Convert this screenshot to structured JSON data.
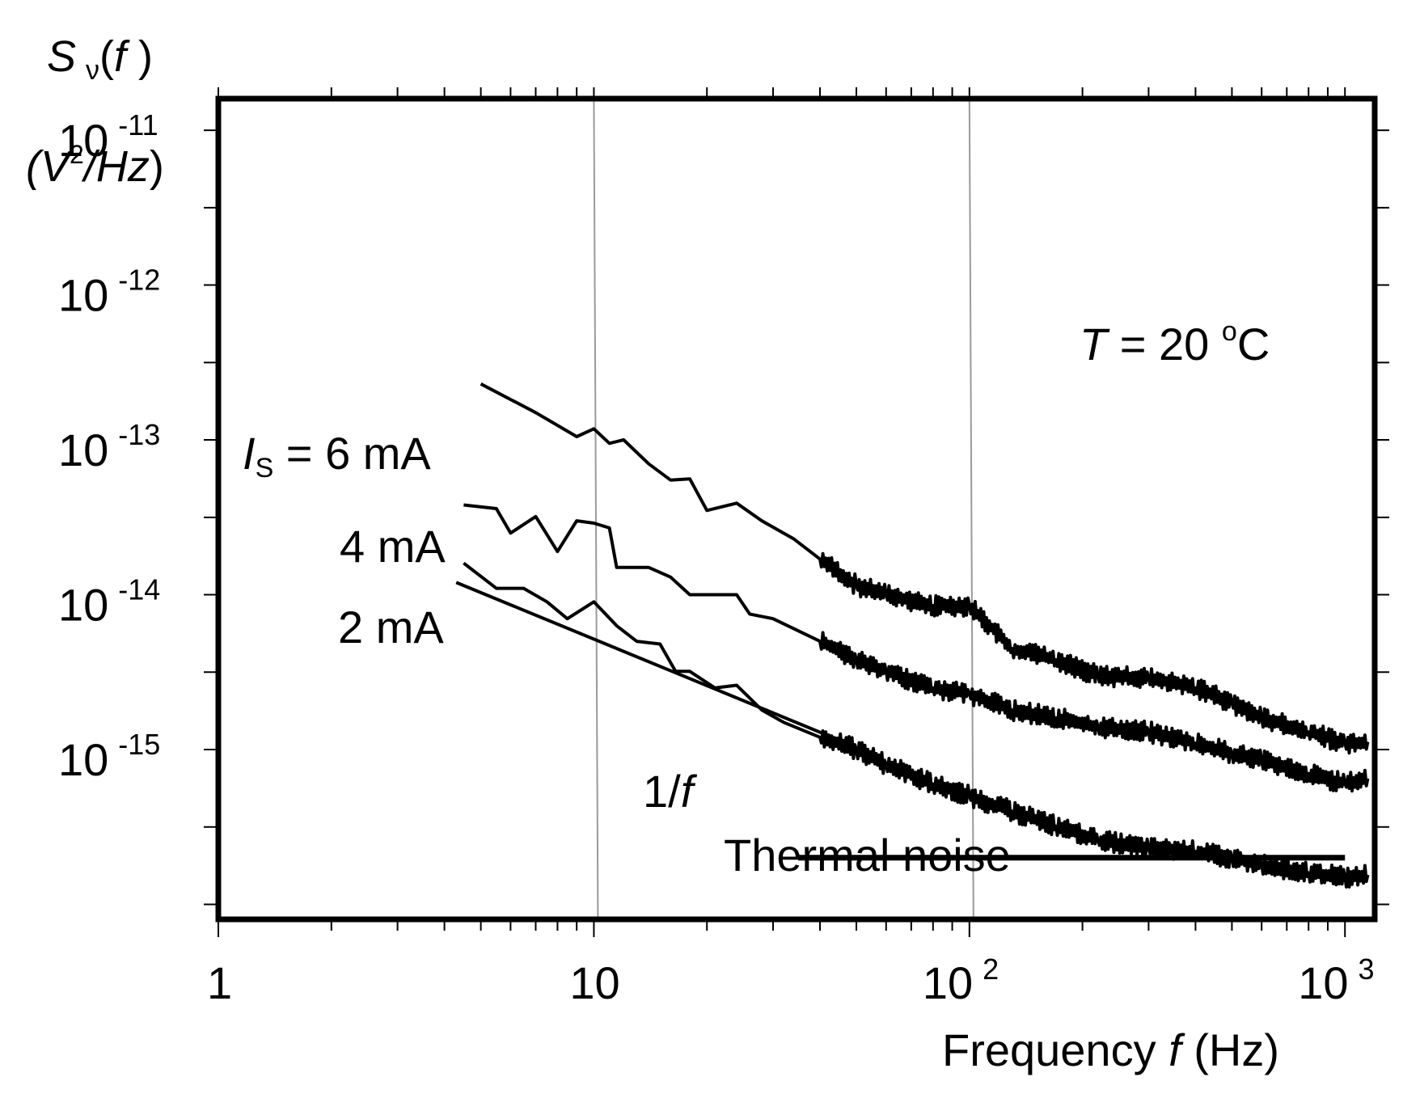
{
  "chart_data": {
    "type": "line",
    "x_scale": "log",
    "y_scale": "log",
    "xlim": [
      1,
      1200
    ],
    "ylim": [
      8e-17,
      1.6e-11
    ],
    "ylabel_symbol": "S",
    "ylabel_subscript": "ν",
    "ylabel_arg_open": "(",
    "ylabel_arg": "f",
    "ylabel_arg_close": " )",
    "ylabel_units_open": "(",
    "ylabel_units_v": "V",
    "ylabel_units_exp": "2",
    "ylabel_units_rest": "/Hz",
    "ylabel_units_close": ")",
    "xlabel_prefix": "Frequency ",
    "xlabel_var": "f",
    "xlabel_suffix": " (Hz)",
    "x_ticks": [
      {
        "value": 1,
        "base": "1",
        "exp": ""
      },
      {
        "value": 10,
        "base": "10",
        "exp": ""
      },
      {
        "value": 100,
        "base": "10",
        "exp": "2"
      },
      {
        "value": 1000,
        "base": "10",
        "exp": "3"
      }
    ],
    "y_ticks": [
      {
        "value": 1e-11,
        "base": "10",
        "exp": "-11"
      },
      {
        "value": 1e-12,
        "base": "10",
        "exp": "-12"
      },
      {
        "value": 1e-13,
        "base": "10",
        "exp": "-13"
      },
      {
        "value": 1e-14,
        "base": "10",
        "exp": "-14"
      },
      {
        "value": 1e-15,
        "base": "10",
        "exp": "-15"
      }
    ],
    "gridlines_x": [
      10,
      100
    ],
    "temperature_label": {
      "var": "T",
      "text": " = 20 ",
      "sup": "o",
      "unit": "C"
    },
    "series": [
      {
        "name": "6 mA",
        "label_var": "I",
        "label_sub": "S",
        "label_text": " = 6 mA",
        "x": [
          5.0,
          7.0,
          9.0,
          10.0,
          11.0,
          12.0,
          14.0,
          16.0,
          18.0,
          20.0,
          24.0,
          28.0,
          34.0,
          40.0,
          50.0,
          60.0,
          80.0,
          100.0,
          130.0,
          170.0,
          220.0,
          300.0,
          400.0,
          500.0,
          600.0,
          800.0,
          1000.0,
          1150.0
        ],
        "y": [
          2.3e-13,
          1.5e-13,
          1.05e-13,
          1.18e-13,
          9.5e-14,
          1e-13,
          7e-14,
          5.5e-14,
          5.6e-14,
          3.5e-14,
          3.9e-14,
          3e-14,
          2.3e-14,
          1.7e-14,
          1.15e-14,
          1e-14,
          8.5e-15,
          8.5e-15,
          4.5e-15,
          3.8e-15,
          3e-15,
          2.9e-15,
          2.5e-15,
          2e-15,
          1.6e-15,
          1.3e-15,
          1.1e-15,
          1.12e-15
        ],
        "noise_from": 40,
        "noise_amp": 0.045
      },
      {
        "name": "4 mA",
        "label_text": "4 mA",
        "x": [
          4.5,
          5.5,
          6.0,
          7.0,
          8.0,
          9.0,
          10.0,
          11.0,
          11.5,
          14.0,
          16.0,
          18.0,
          20.0,
          24.0,
          26.0,
          30.0,
          40.0,
          50.0,
          60.0,
          80.0,
          100.0,
          130.0,
          170.0,
          220.0,
          300.0,
          400.0,
          500.0,
          600.0,
          800.0,
          1000.0,
          1150.0
        ],
        "y": [
          3.8e-14,
          3.6e-14,
          2.5e-14,
          3.2e-14,
          1.9e-14,
          3e-14,
          2.9e-14,
          2.7e-14,
          1.5e-14,
          1.5e-14,
          1.3e-14,
          1e-14,
          1e-14,
          1e-14,
          7.5e-15,
          7e-15,
          5e-15,
          3.8e-15,
          3.2e-15,
          2.5e-15,
          2.3e-15,
          1.8e-15,
          1.6e-15,
          1.4e-15,
          1.3e-15,
          1.1e-15,
          9.5e-16,
          8.5e-16,
          7e-16,
          6e-16,
          6.5e-16
        ],
        "noise_from": 40,
        "noise_amp": 0.045
      },
      {
        "name": "2 mA",
        "label_text": "2 mA",
        "x": [
          4.5,
          5.5,
          6.5,
          7.5,
          8.5,
          10.0,
          11.5,
          13.0,
          15.0,
          16.5,
          18.0,
          21.0,
          24.0,
          28.0,
          32.0,
          40.0,
          50.0,
          60.0,
          80.0,
          100.0,
          130.0,
          170.0,
          220.0,
          300.0,
          400.0,
          500.0,
          600.0,
          800.0,
          1000.0,
          1150.0
        ],
        "y": [
          1.6e-14,
          1.1e-14,
          1.1e-14,
          9e-15,
          7e-15,
          9e-15,
          6.3e-15,
          5e-15,
          4.8e-15,
          3.2e-15,
          3.2e-15,
          2.5e-15,
          2.6e-15,
          1.8e-15,
          1.5e-15,
          1.2e-15,
          1e-15,
          8e-16,
          6e-16,
          5e-16,
          4e-16,
          3.2e-16,
          2.6e-16,
          2.3e-16,
          2.2e-16,
          2e-16,
          1.8e-16,
          1.6e-16,
          1.5e-16,
          1.55e-16
        ],
        "noise_from": 40,
        "noise_amp": 0.045
      }
    ],
    "reference_lines": [
      {
        "name": "1/f",
        "label_prefix": "1/",
        "label_var": "f",
        "x": [
          4.3,
          45
        ],
        "y": [
          1.2e-14,
          1.15e-15
        ]
      },
      {
        "name": "Thermal noise",
        "label": "Thermal noise",
        "x": [
          35,
          1000
        ],
        "y": [
          2e-16,
          2e-16
        ]
      }
    ]
  }
}
